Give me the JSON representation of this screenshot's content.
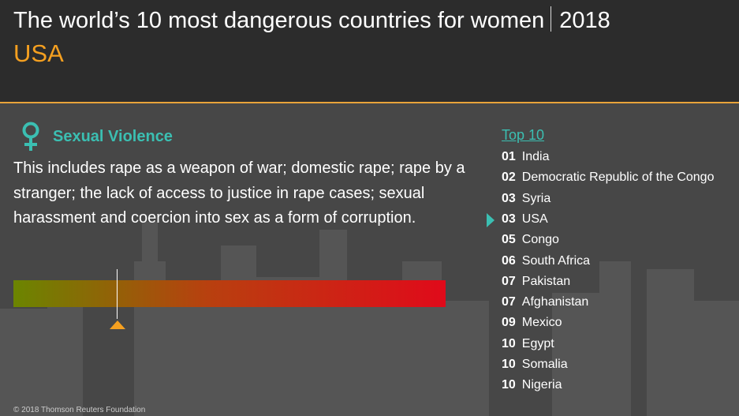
{
  "header": {
    "title": "The world’s 10 most dangerous countries for women",
    "year": "2018",
    "country": "USA"
  },
  "section": {
    "heading": "Sexual Violence",
    "description": "This includes rape as a weapon of war; domestic rape; rape by a stranger; the lack of access to justice in rape cases; sexual harassment and coercion into sex as a form of corruption."
  },
  "top_list": {
    "title": "Top 10",
    "selected": 3,
    "items": [
      {
        "rank": "01",
        "name": "India"
      },
      {
        "rank": "02",
        "name": "Democratic Republic of the Congo"
      },
      {
        "rank": "03",
        "name": "Syria"
      },
      {
        "rank": "03",
        "name": "USA"
      },
      {
        "rank": "05",
        "name": "Congo"
      },
      {
        "rank": "06",
        "name": "South Africa"
      },
      {
        "rank": "07",
        "name": "Pakistan"
      },
      {
        "rank": "07",
        "name": "Afghanistan"
      },
      {
        "rank": "09",
        "name": "Mexico"
      },
      {
        "rank": "10",
        "name": "Egypt"
      },
      {
        "rank": "10",
        "name": "Somalia"
      },
      {
        "rank": "10",
        "name": "Nigeria"
      }
    ]
  },
  "footer": "© 2018 Thomson Reuters Foundation"
}
